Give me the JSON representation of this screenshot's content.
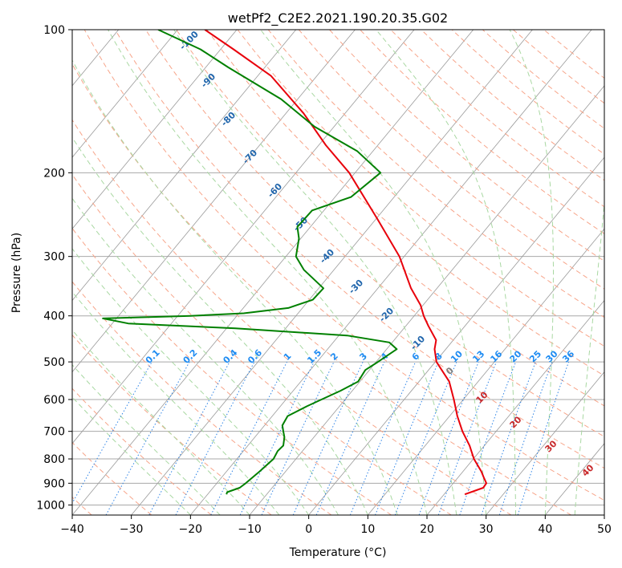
{
  "chart_data": {
    "type": "line",
    "subtype": "skew-t log-p diagram",
    "title": "wetPf2_C2E2.2021.190.20.35.G02",
    "xlabel": "Temperature (°C)",
    "ylabel": "Pressure (hPa)",
    "xlim": [
      -40,
      50
    ],
    "ylim": [
      1050,
      100
    ],
    "y_scale": "log",
    "grid": true,
    "x_ticks": [
      "−40",
      "−30",
      "−20",
      "−10",
      "0",
      "10",
      "20",
      "30",
      "40",
      "50"
    ],
    "x_tick_values": [
      -40,
      -30,
      -20,
      -10,
      0,
      10,
      20,
      30,
      40,
      50
    ],
    "y_ticks": [
      "100",
      "200",
      "300",
      "400",
      "500",
      "600",
      "700",
      "800",
      "900",
      "1000"
    ],
    "y_tick_values": [
      100,
      200,
      300,
      400,
      500,
      600,
      700,
      800,
      900,
      1000
    ],
    "series": [],
    "temperature_profile": {
      "color": "#e8000b",
      "points": [
        [
          950,
          23.5
        ],
        [
          920,
          25.7
        ],
        [
          900,
          25.6
        ],
        [
          880,
          24.6
        ],
        [
          850,
          23.1
        ],
        [
          800,
          20.1
        ],
        [
          750,
          17.5
        ],
        [
          700,
          14.3
        ],
        [
          650,
          11.3
        ],
        [
          600,
          8.4
        ],
        [
          550,
          5.1
        ],
        [
          500,
          0.2
        ],
        [
          470,
          -1.9
        ],
        [
          450,
          -2.9
        ],
        [
          420,
          -6.2
        ],
        [
          400,
          -8.4
        ],
        [
          380,
          -10.4
        ],
        [
          350,
          -14.4
        ],
        [
          300,
          -20.8
        ],
        [
          250,
          -29.8
        ],
        [
          200,
          -41.0
        ],
        [
          175,
          -48.8
        ],
        [
          150,
          -57.0
        ],
        [
          125,
          -67.8
        ],
        [
          110,
          -77.8
        ],
        [
          100,
          -85.4
        ]
      ]
    },
    "dewpoint_profile": {
      "color": "#008000",
      "points": [
        [
          950,
          -16.8
        ],
        [
          940,
          -17.0
        ],
        [
          920,
          -15.5
        ],
        [
          900,
          -15.1
        ],
        [
          850,
          -14.4
        ],
        [
          800,
          -13.8
        ],
        [
          770,
          -14.2
        ],
        [
          750,
          -14.0
        ],
        [
          720,
          -15.0
        ],
        [
          700,
          -16.0
        ],
        [
          680,
          -17.0
        ],
        [
          650,
          -17.4
        ],
        [
          620,
          -15.5
        ],
        [
          600,
          -14.0
        ],
        [
          575,
          -12.0
        ],
        [
          550,
          -10.3
        ],
        [
          520,
          -10.7
        ],
        [
          500,
          -9.7
        ],
        [
          470,
          -8.3
        ],
        [
          455,
          -10.5
        ],
        [
          440,
          -18.6
        ],
        [
          425,
          -38.5
        ],
        [
          415,
          -57.3
        ],
        [
          405,
          -62.3
        ],
        [
          400,
          -47.8
        ],
        [
          395,
          -39.2
        ],
        [
          385,
          -32.4
        ],
        [
          370,
          -29.4
        ],
        [
          350,
          -29.2
        ],
        [
          320,
          -35.1
        ],
        [
          300,
          -38.3
        ],
        [
          275,
          -40.3
        ],
        [
          260,
          -42.2
        ],
        [
          240,
          -42.0
        ],
        [
          225,
          -37.3
        ],
        [
          200,
          -35.7
        ],
        [
          180,
          -42.7
        ],
        [
          160,
          -53.3
        ],
        [
          140,
          -62.8
        ],
        [
          120,
          -76.2
        ],
        [
          110,
          -83.4
        ],
        [
          100,
          -93.3
        ]
      ]
    },
    "dry_adiabat_labels": [
      "-100",
      "-90",
      "-80",
      "-70",
      "-60",
      "-50",
      "-40",
      "-30",
      "-20",
      "-10"
    ],
    "dry_adiabat_label_temps_at_1000": [
      -100,
      -90,
      -80,
      -70,
      -60,
      -50,
      -40,
      -30,
      -20,
      -10
    ],
    "moist_adiabat_labels": [
      "0",
      "10",
      "20",
      "30",
      "40"
    ],
    "mixing_ratio_labels": [
      "0.1",
      "0.2",
      "0.4",
      "0.6",
      "1",
      "1.5",
      "2",
      "3",
      "4",
      "6",
      "8",
      "10",
      "13",
      "16",
      "20",
      "25",
      "30",
      "36"
    ],
    "mixing_ratio_values": [
      0.1,
      0.2,
      0.4,
      0.6,
      1,
      1.5,
      2,
      3,
      4,
      6,
      8,
      10,
      13,
      16,
      20,
      25,
      30,
      36
    ],
    "colors": {
      "isotherm": "#9a9a9a",
      "isobar": "#a8a8a8",
      "dry_adiabat": "#f7a58a",
      "moist_adiabat": "#a9d8a2",
      "mixing_ratio": "#2d83e6",
      "dry_label": "#2166ac",
      "moist_label_warm": "#c8282a",
      "moist_label_zero": "#7f7f7f",
      "mixing_label": "#1f8cf2"
    }
  }
}
